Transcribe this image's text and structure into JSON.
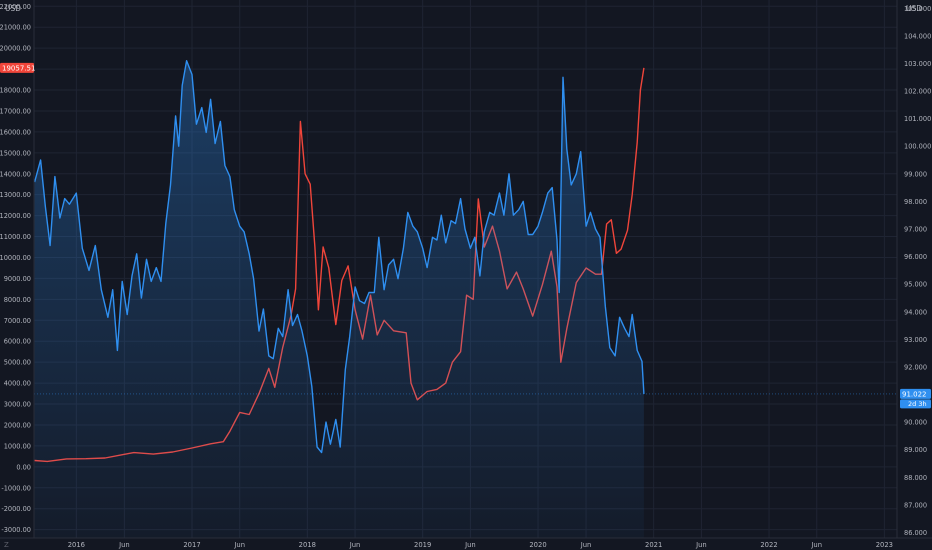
{
  "colors": {
    "background": "#131722",
    "grid": "#1f2433",
    "axis_line": "#2a2e39",
    "axis_text": "#b2b5be",
    "red": "#f0453a",
    "blue": "#2f8ff0",
    "blue_fill": "#2f8ff0"
  },
  "units": {
    "left": "USD",
    "right": "USD"
  },
  "axis_badges": {
    "left_value": "19057.51",
    "right_value": "91.022",
    "right_countdown": "2d 3h"
  },
  "corner_glyph": "Z",
  "chart_data": {
    "type": "line",
    "x_axis": {
      "type": "date",
      "range": [
        "2015-08-20",
        "2023-02-10"
      ],
      "tick_labels": [
        "2016",
        "Jun",
        "2017",
        "Jun",
        "2018",
        "Jun",
        "2019",
        "Jun",
        "2020",
        "Jun",
        "2021",
        "Jun",
        "2022",
        "Jun",
        "2023"
      ]
    },
    "y_left": {
      "range": [
        -3400,
        22300
      ],
      "tick_labels": [
        "-3000.00",
        "-2000.00",
        "-1000.00",
        "0.00",
        "1000.00",
        "2000.00",
        "3000.00",
        "4000.00",
        "5000.00",
        "6000.00",
        "7000.00",
        "8000.00",
        "9000.00",
        "10000.00",
        "11000.00",
        "12000.00",
        "13000.00",
        "14000.00",
        "15000.00",
        "16000.00",
        "17000.00",
        "18000.00",
        "19000.00",
        "20000.00",
        "21000.00",
        "22000.00"
      ]
    },
    "y_right": {
      "range": [
        85.8,
        105.3
      ],
      "tick_labels": [
        "86.000",
        "87.000",
        "88.000",
        "89.000",
        "90.000",
        "91.000",
        "92.000",
        "93.000",
        "94.000",
        "95.000",
        "96.000",
        "97.000",
        "98.000",
        "99.000",
        "100.000",
        "101.000",
        "102.000",
        "103.000",
        "104.000",
        "105.000"
      ]
    },
    "grid": true,
    "series": [
      {
        "axis": "left",
        "color": "#f0453a",
        "style": "line",
        "points": [
          [
            "2015-08-22",
            300
          ],
          [
            "2015-10-01",
            260
          ],
          [
            "2015-12-01",
            380
          ],
          [
            "2016-02-01",
            390
          ],
          [
            "2016-04-01",
            420
          ],
          [
            "2016-06-01",
            600
          ],
          [
            "2016-07-01",
            680
          ],
          [
            "2016-09-01",
            610
          ],
          [
            "2016-11-01",
            710
          ],
          [
            "2017-01-01",
            900
          ],
          [
            "2017-03-01",
            1100
          ],
          [
            "2017-04-10",
            1200
          ],
          [
            "2017-05-01",
            1700
          ],
          [
            "2017-06-01",
            2600
          ],
          [
            "2017-07-01",
            2500
          ],
          [
            "2017-08-01",
            3500
          ],
          [
            "2017-09-01",
            4700
          ],
          [
            "2017-09-20",
            3800
          ],
          [
            "2017-10-15",
            5700
          ],
          [
            "2017-11-10",
            7200
          ],
          [
            "2017-11-25",
            8500
          ],
          [
            "2017-12-10",
            16500
          ],
          [
            "2017-12-25",
            14000
          ],
          [
            "2018-01-10",
            13500
          ],
          [
            "2018-01-25",
            10500
          ],
          [
            "2018-02-05",
            7500
          ],
          [
            "2018-02-20",
            10500
          ],
          [
            "2018-03-10",
            9500
          ],
          [
            "2018-04-01",
            6800
          ],
          [
            "2018-04-20",
            8900
          ],
          [
            "2018-05-10",
            9600
          ],
          [
            "2018-06-01",
            7500
          ],
          [
            "2018-06-25",
            6100
          ],
          [
            "2018-07-20",
            8200
          ],
          [
            "2018-08-10",
            6300
          ],
          [
            "2018-09-01",
            7000
          ],
          [
            "2018-10-01",
            6500
          ],
          [
            "2018-11-10",
            6400
          ],
          [
            "2018-11-25",
            4000
          ],
          [
            "2018-12-15",
            3200
          ],
          [
            "2019-01-15",
            3600
          ],
          [
            "2019-02-15",
            3700
          ],
          [
            "2019-03-15",
            4000
          ],
          [
            "2019-04-05",
            5000
          ],
          [
            "2019-05-01",
            5500
          ],
          [
            "2019-05-20",
            8200
          ],
          [
            "2019-06-10",
            8000
          ],
          [
            "2019-06-26",
            12800
          ],
          [
            "2019-07-15",
            10500
          ],
          [
            "2019-08-10",
            11500
          ],
          [
            "2019-09-01",
            10300
          ],
          [
            "2019-09-25",
            8500
          ],
          [
            "2019-10-25",
            9300
          ],
          [
            "2019-11-15",
            8500
          ],
          [
            "2019-12-15",
            7200
          ],
          [
            "2020-01-15",
            8700
          ],
          [
            "2020-02-12",
            10300
          ],
          [
            "2020-03-01",
            8600
          ],
          [
            "2020-03-13",
            5000
          ],
          [
            "2020-04-01",
            6600
          ],
          [
            "2020-05-01",
            8800
          ],
          [
            "2020-06-01",
            9500
          ],
          [
            "2020-07-01",
            9200
          ],
          [
            "2020-07-20",
            9200
          ],
          [
            "2020-08-05",
            11600
          ],
          [
            "2020-08-20",
            11800
          ],
          [
            "2020-09-05",
            10200
          ],
          [
            "2020-09-20",
            10400
          ],
          [
            "2020-10-10",
            11300
          ],
          [
            "2020-10-25",
            13000
          ],
          [
            "2020-11-10",
            15500
          ],
          [
            "2020-11-20",
            18000
          ],
          [
            "2020-12-01",
            19057.51
          ]
        ]
      },
      {
        "axis": "right",
        "color": "#2f8ff0",
        "style": "area",
        "points": [
          [
            "2015-08-22",
            98.7
          ],
          [
            "2015-09-10",
            99.5
          ],
          [
            "2015-09-25",
            97.8
          ],
          [
            "2015-10-10",
            96.4
          ],
          [
            "2015-10-25",
            98.9
          ],
          [
            "2015-11-10",
            97.4
          ],
          [
            "2015-11-25",
            98.1
          ],
          [
            "2015-12-10",
            97.9
          ],
          [
            "2016-01-01",
            98.3
          ],
          [
            "2016-01-20",
            96.3
          ],
          [
            "2016-02-10",
            95.5
          ],
          [
            "2016-03-01",
            96.4
          ],
          [
            "2016-03-20",
            94.8
          ],
          [
            "2016-04-10",
            93.8
          ],
          [
            "2016-04-25",
            94.8
          ],
          [
            "2016-05-10",
            92.6
          ],
          [
            "2016-05-25",
            95.1
          ],
          [
            "2016-06-10",
            93.9
          ],
          [
            "2016-06-25",
            95.3
          ],
          [
            "2016-07-10",
            96.1
          ],
          [
            "2016-07-25",
            94.5
          ],
          [
            "2016-08-10",
            95.9
          ],
          [
            "2016-08-25",
            95.1
          ],
          [
            "2016-09-10",
            95.6
          ],
          [
            "2016-09-25",
            95.1
          ],
          [
            "2016-10-10",
            97.2
          ],
          [
            "2016-10-25",
            98.6
          ],
          [
            "2016-11-10",
            101.1
          ],
          [
            "2016-11-20",
            100.0
          ],
          [
            "2016-12-01",
            102.2
          ],
          [
            "2016-12-15",
            103.1
          ],
          [
            "2017-01-01",
            102.6
          ],
          [
            "2017-01-15",
            100.8
          ],
          [
            "2017-02-01",
            101.4
          ],
          [
            "2017-02-15",
            100.5
          ],
          [
            "2017-03-01",
            101.7
          ],
          [
            "2017-03-15",
            100.1
          ],
          [
            "2017-04-01",
            100.9
          ],
          [
            "2017-04-15",
            99.3
          ],
          [
            "2017-05-01",
            98.9
          ],
          [
            "2017-05-15",
            97.7
          ],
          [
            "2017-06-01",
            97.1
          ],
          [
            "2017-06-15",
            96.9
          ],
          [
            "2017-07-01",
            96.1
          ],
          [
            "2017-07-15",
            95.2
          ],
          [
            "2017-08-01",
            93.3
          ],
          [
            "2017-08-15",
            94.1
          ],
          [
            "2017-09-01",
            92.4
          ],
          [
            "2017-09-15",
            92.3
          ],
          [
            "2017-10-01",
            93.4
          ],
          [
            "2017-10-15",
            93.1
          ],
          [
            "2017-11-01",
            94.8
          ],
          [
            "2017-11-15",
            93.5
          ],
          [
            "2017-12-01",
            93.9
          ],
          [
            "2017-12-15",
            93.3
          ],
          [
            "2018-01-01",
            92.4
          ],
          [
            "2018-01-15",
            91.3
          ],
          [
            "2018-02-01",
            89.1
          ],
          [
            "2018-02-15",
            88.9
          ],
          [
            "2018-03-01",
            90.0
          ],
          [
            "2018-03-15",
            89.2
          ],
          [
            "2018-04-01",
            90.1
          ],
          [
            "2018-04-15",
            89.1
          ],
          [
            "2018-05-01",
            91.9
          ],
          [
            "2018-05-15",
            93.1
          ],
          [
            "2018-06-01",
            94.9
          ],
          [
            "2018-06-15",
            94.4
          ],
          [
            "2018-07-01",
            94.3
          ],
          [
            "2018-07-15",
            94.7
          ],
          [
            "2018-08-01",
            94.7
          ],
          [
            "2018-08-15",
            96.7
          ],
          [
            "2018-09-01",
            94.8
          ],
          [
            "2018-09-15",
            95.7
          ],
          [
            "2018-10-01",
            95.9
          ],
          [
            "2018-10-15",
            95.2
          ],
          [
            "2018-11-01",
            96.3
          ],
          [
            "2018-11-15",
            97.6
          ],
          [
            "2018-12-01",
            97.1
          ],
          [
            "2018-12-15",
            96.9
          ],
          [
            "2019-01-01",
            96.3
          ],
          [
            "2019-01-15",
            95.6
          ],
          [
            "2019-02-01",
            96.7
          ],
          [
            "2019-02-15",
            96.6
          ],
          [
            "2019-03-01",
            97.5
          ],
          [
            "2019-03-15",
            96.5
          ],
          [
            "2019-04-01",
            97.3
          ],
          [
            "2019-04-15",
            97.2
          ],
          [
            "2019-05-01",
            98.1
          ],
          [
            "2019-05-15",
            97.0
          ],
          [
            "2019-06-01",
            96.3
          ],
          [
            "2019-06-15",
            96.7
          ],
          [
            "2019-07-01",
            95.3
          ],
          [
            "2019-07-15",
            96.9
          ],
          [
            "2019-08-01",
            97.6
          ],
          [
            "2019-08-15",
            97.5
          ],
          [
            "2019-09-01",
            98.3
          ],
          [
            "2019-09-15",
            97.5
          ],
          [
            "2019-10-01",
            99.0
          ],
          [
            "2019-10-15",
            97.5
          ],
          [
            "2019-11-01",
            97.7
          ],
          [
            "2019-11-15",
            98.0
          ],
          [
            "2019-12-01",
            96.8
          ],
          [
            "2019-12-15",
            96.8
          ],
          [
            "2020-01-01",
            97.1
          ],
          [
            "2020-01-15",
            97.6
          ],
          [
            "2020-02-01",
            98.3
          ],
          [
            "2020-02-15",
            98.5
          ],
          [
            "2020-03-01",
            96.6
          ],
          [
            "2020-03-08",
            94.7
          ],
          [
            "2020-03-20",
            102.5
          ],
          [
            "2020-04-01",
            99.9
          ],
          [
            "2020-04-15",
            98.6
          ],
          [
            "2020-05-01",
            99.0
          ],
          [
            "2020-05-15",
            99.8
          ],
          [
            "2020-06-01",
            97.1
          ],
          [
            "2020-06-15",
            97.6
          ],
          [
            "2020-07-01",
            97.0
          ],
          [
            "2020-07-15",
            96.7
          ],
          [
            "2020-08-01",
            94.2
          ],
          [
            "2020-08-15",
            92.7
          ],
          [
            "2020-09-01",
            92.4
          ],
          [
            "2020-09-15",
            93.8
          ],
          [
            "2020-10-01",
            93.4
          ],
          [
            "2020-10-15",
            93.1
          ],
          [
            "2020-10-25",
            93.9
          ],
          [
            "2020-11-10",
            92.6
          ],
          [
            "2020-11-25",
            92.2
          ],
          [
            "2020-12-01",
            91.022
          ]
        ]
      }
    ]
  }
}
